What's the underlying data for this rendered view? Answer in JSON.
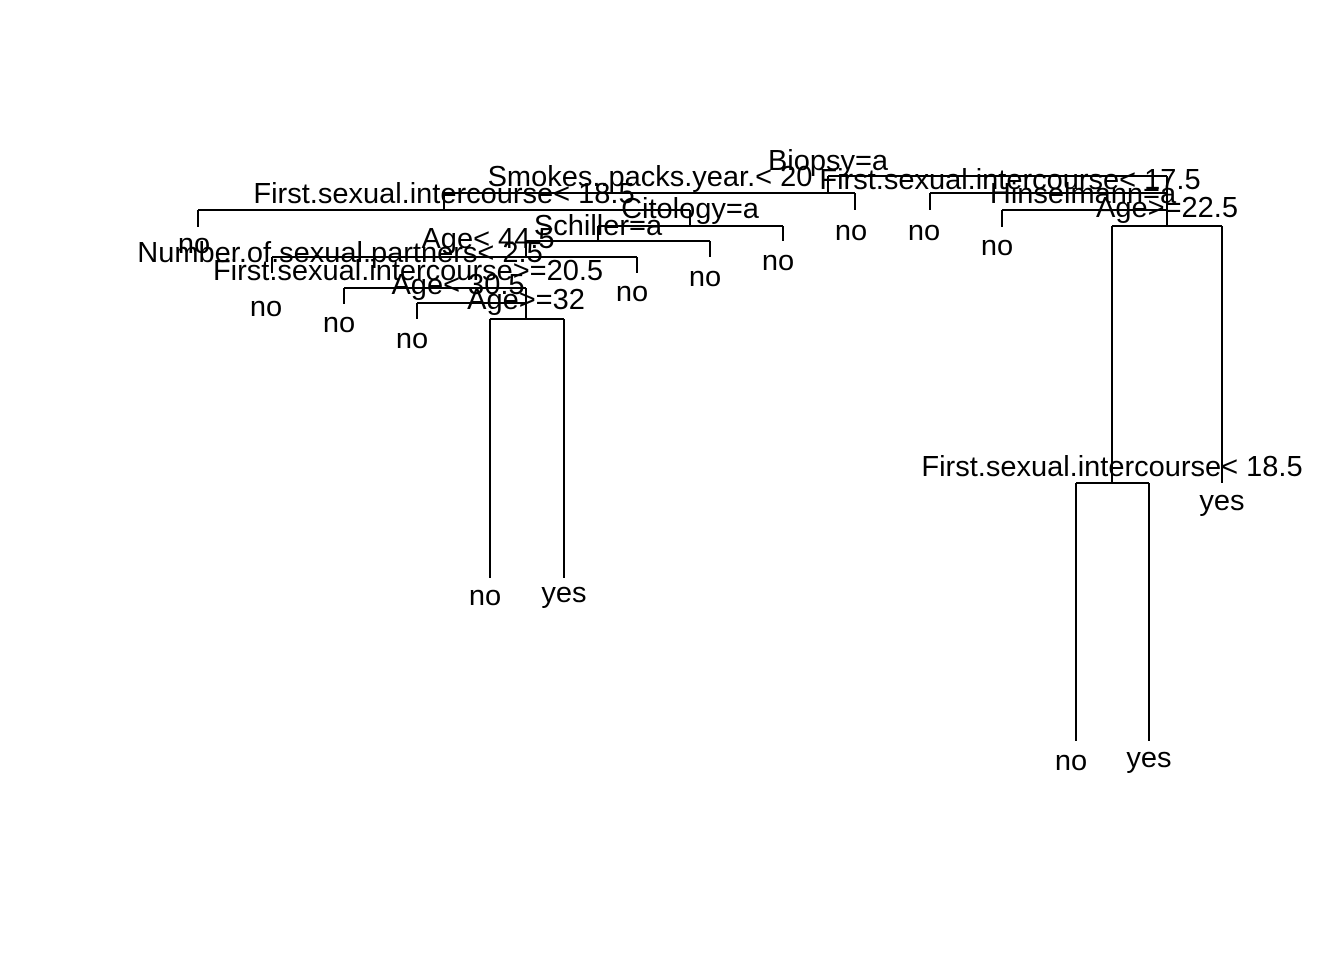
{
  "tree": {
    "line_color": "#000000",
    "splits": [
      {
        "id": "biopsy",
        "label": "Biopsy=a"
      },
      {
        "id": "smokes",
        "label": "Smokes..packs.year.< 20"
      },
      {
        "id": "first-sex-17",
        "label": "First.sexual.intercourse< 17.5"
      },
      {
        "id": "first-sex-18-left",
        "label": "First.sexual.intercourse< 18.5"
      },
      {
        "id": "citology",
        "label": "Citology=a"
      },
      {
        "id": "hinselmann",
        "label": "Hinselmann=a"
      },
      {
        "id": "age-22",
        "label": "Age>=22.5"
      },
      {
        "id": "schiller",
        "label": "Schiller=a"
      },
      {
        "id": "age-44",
        "label": "Age< 44.5"
      },
      {
        "id": "num-partners",
        "label": "Number.of.sexual.partners< 2.5"
      },
      {
        "id": "first-sex-20",
        "label": "First.sexual.intercourse>=20.5"
      },
      {
        "id": "age-30",
        "label": "Age< 30.5"
      },
      {
        "id": "age-32",
        "label": "Age>=32"
      },
      {
        "id": "first-sex-18-right",
        "label": "First.sexual.intercourse< 18.5"
      }
    ],
    "leaves": [
      {
        "id": "leaf-1",
        "label": "no"
      },
      {
        "id": "leaf-2",
        "label": "no"
      },
      {
        "id": "leaf-3",
        "label": "no"
      },
      {
        "id": "leaf-4",
        "label": "no"
      },
      {
        "id": "leaf-5",
        "label": "no"
      },
      {
        "id": "leaf-6",
        "label": "yes"
      },
      {
        "id": "leaf-7",
        "label": "no"
      },
      {
        "id": "leaf-8",
        "label": "no"
      },
      {
        "id": "leaf-9",
        "label": "no"
      },
      {
        "id": "leaf-10",
        "label": "no"
      },
      {
        "id": "leaf-11",
        "label": "no"
      },
      {
        "id": "leaf-12",
        "label": "no"
      },
      {
        "id": "leaf-13",
        "label": "no"
      },
      {
        "id": "leaf-14",
        "label": "yes"
      },
      {
        "id": "leaf-15",
        "label": "yes"
      }
    ]
  }
}
